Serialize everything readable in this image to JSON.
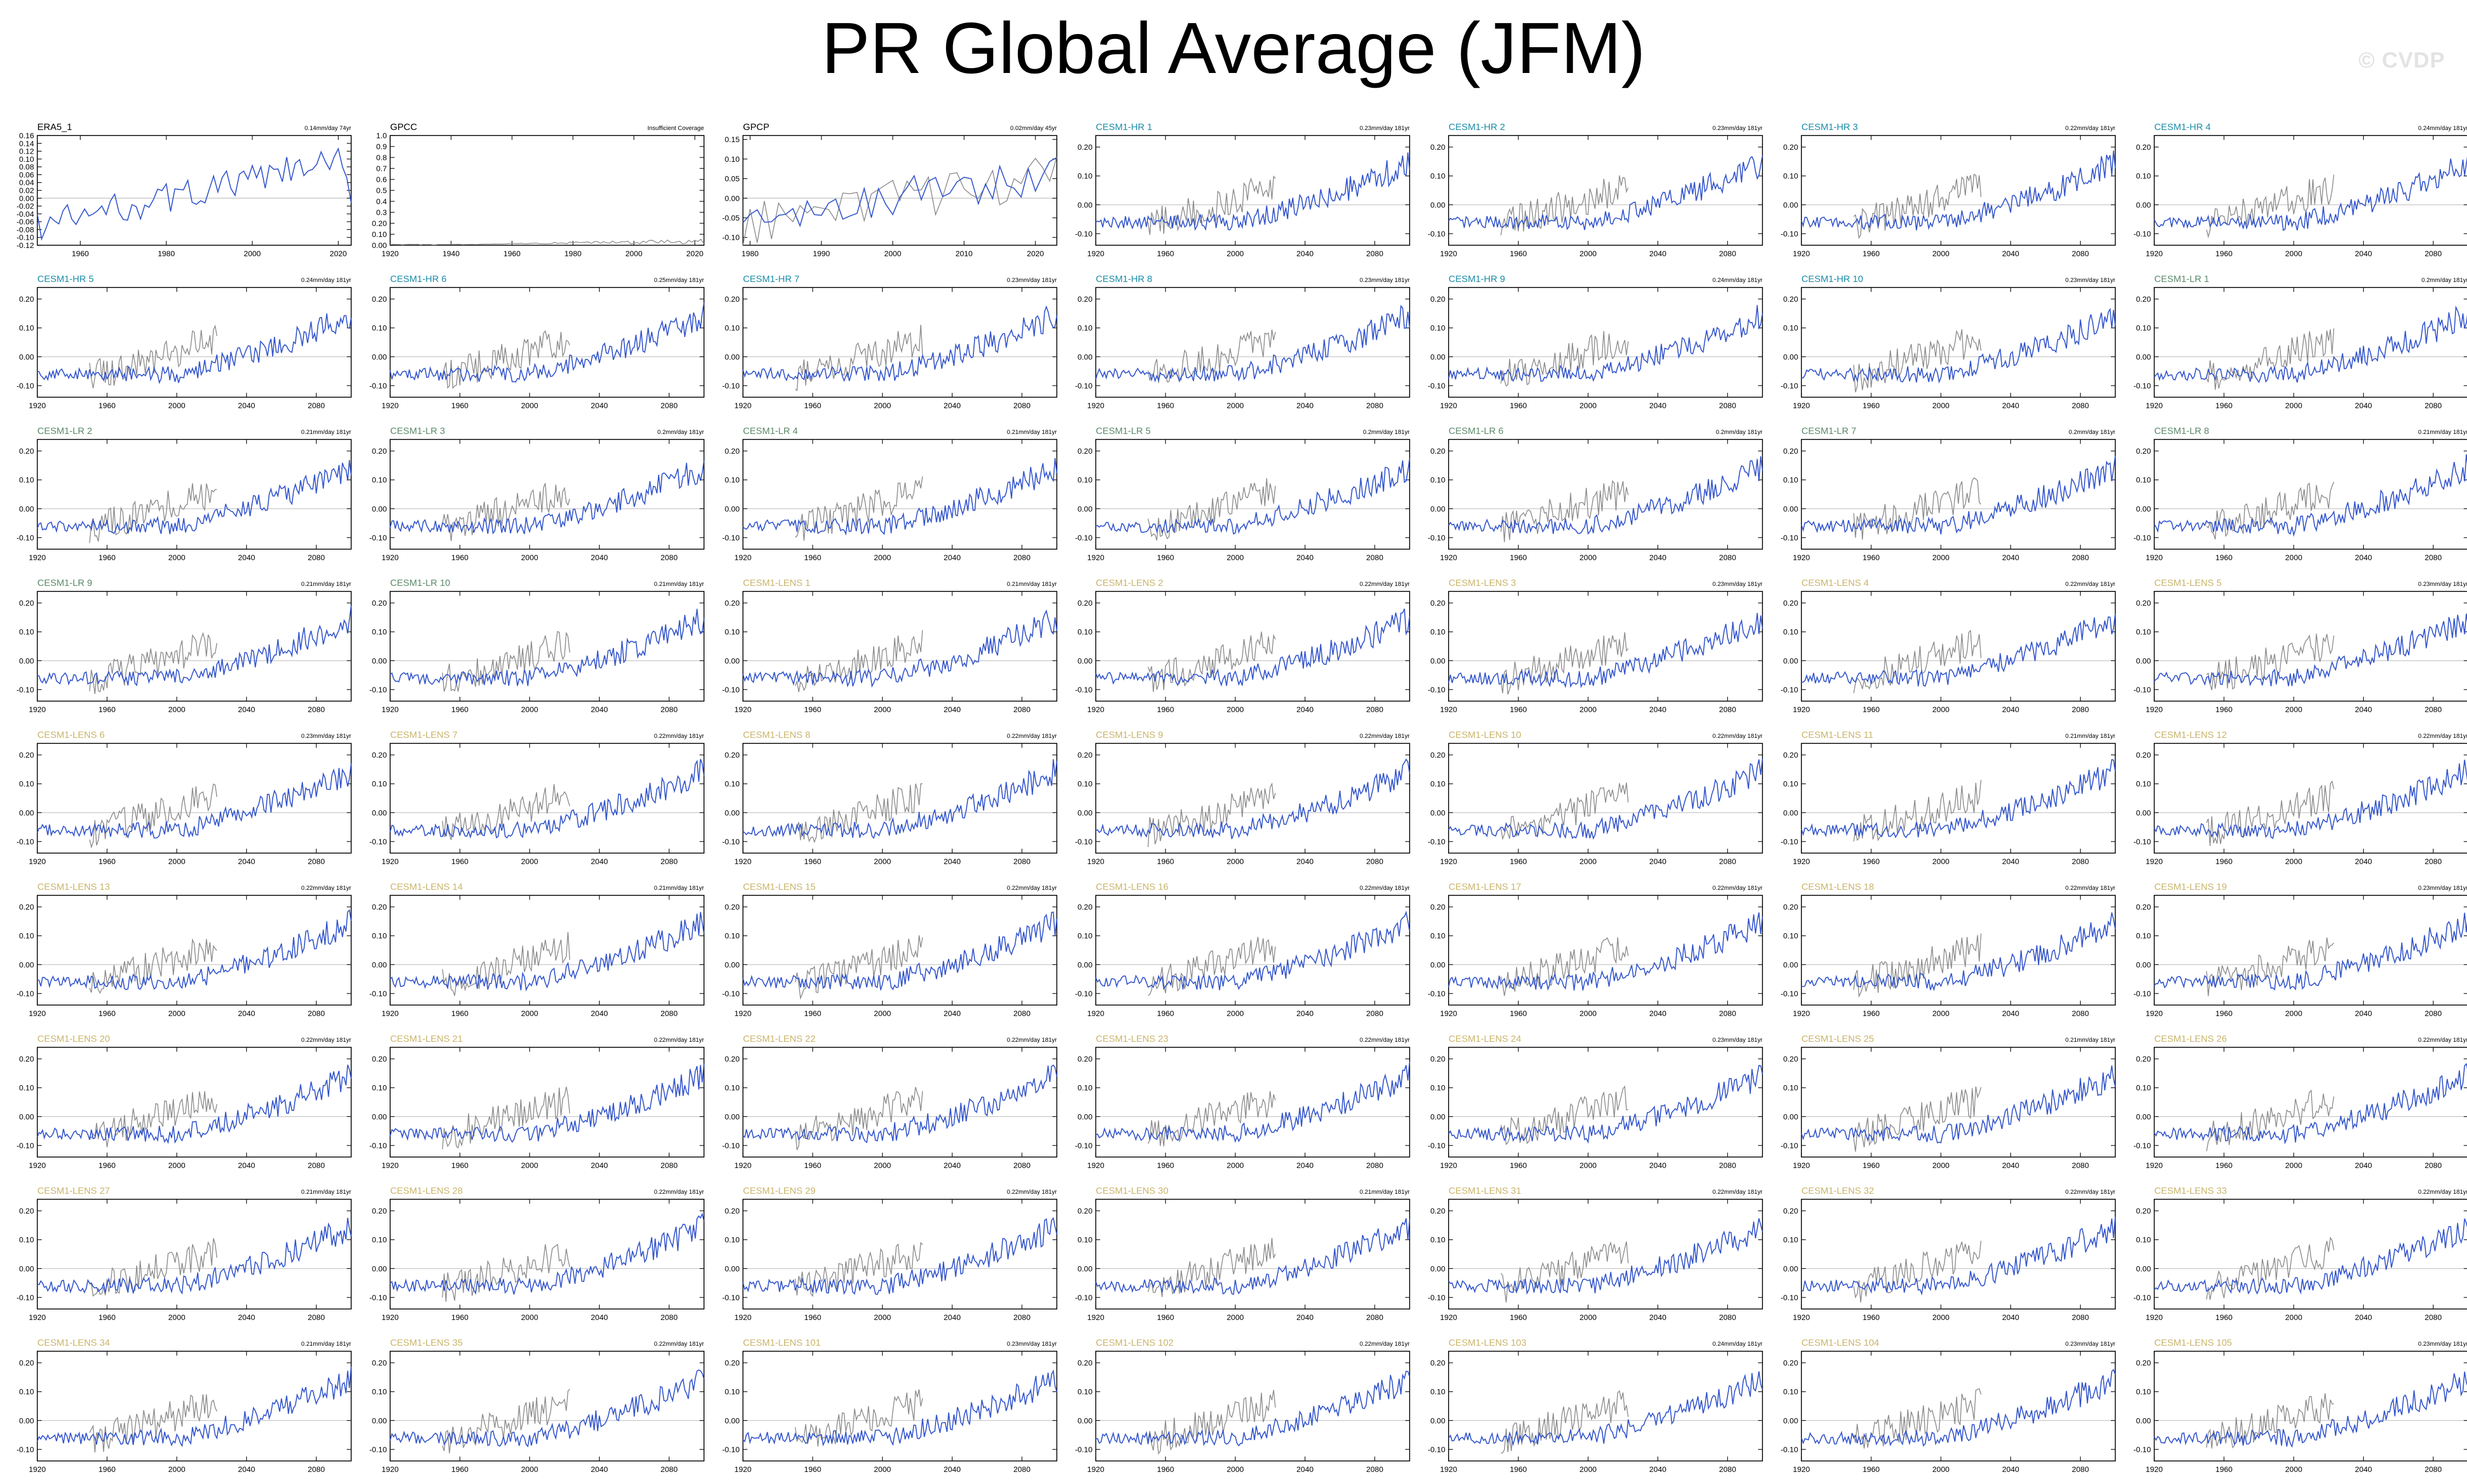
{
  "title": "PR Global Average (JFM)",
  "watermark": "© CVDP",
  "colors": {
    "model_line": "#3355cc",
    "obs_line": "#8a8a8a",
    "zero_line": "#bbbbbb",
    "obs_label": "#000000",
    "hr_label": "#1a8ca8",
    "lr_label": "#5b8a6a",
    "lens_label": "#c9b46a"
  },
  "chart_data": {
    "type": "line",
    "layout": "grid 7 columns x 9 rows of small-multiple panels",
    "panels": [
      {
        "name": "ERA5_1",
        "trend": "0.14mm/day 74yr",
        "group": "obs",
        "x_range": [
          1950,
          2023
        ],
        "ylim": [
          -0.12,
          0.16
        ],
        "yticks": [
          -0.12,
          -0.1,
          -0.08,
          -0.06,
          -0.04,
          -0.02,
          0.0,
          0.02,
          0.04,
          0.06,
          0.08,
          0.1,
          0.12,
          0.14,
          0.16
        ],
        "xticks": [
          1960,
          1980,
          2000,
          2020
        ],
        "series": "model",
        "overlay_obs": false
      },
      {
        "name": "GPCC",
        "trend": "Insufficient Coverage",
        "group": "obs",
        "x_range": [
          1920,
          2023
        ],
        "ylim": [
          0.0,
          1.0
        ],
        "yticks": [
          0.0,
          0.1,
          0.2,
          0.3,
          0.4,
          0.5,
          0.6,
          0.7,
          0.8,
          0.9,
          1.0
        ],
        "xticks": [
          1920,
          1940,
          1960,
          1980,
          2000,
          2020
        ],
        "series": "gpcc",
        "overlay_obs": false
      },
      {
        "name": "GPCP",
        "trend": "0.02mm/day 45yr",
        "group": "obs",
        "x_range": [
          1979,
          2023
        ],
        "ylim": [
          -0.12,
          0.16
        ],
        "yticks": [
          -0.1,
          -0.05,
          0.0,
          0.05,
          0.1,
          0.15
        ],
        "xticks": [
          1980,
          1990,
          2000,
          2010,
          2020
        ],
        "series": "model",
        "overlay_obs": true
      },
      {
        "name": "CESM1-HR 1",
        "trend": "0.23mm/day 181yr",
        "group": "hr"
      },
      {
        "name": "CESM1-HR 2",
        "trend": "0.23mm/day 181yr",
        "group": "hr"
      },
      {
        "name": "CESM1-HR 3",
        "trend": "0.22mm/day 181yr",
        "group": "hr"
      },
      {
        "name": "CESM1-HR 4",
        "trend": "0.24mm/day 181yr",
        "group": "hr"
      },
      {
        "name": "CESM1-HR 5",
        "trend": "0.24mm/day 181yr",
        "group": "hr"
      },
      {
        "name": "CESM1-HR 6",
        "trend": "0.25mm/day 181yr",
        "group": "hr"
      },
      {
        "name": "CESM1-HR 7",
        "trend": "0.23mm/day 181yr",
        "group": "hr"
      },
      {
        "name": "CESM1-HR 8",
        "trend": "0.23mm/day 181yr",
        "group": "hr"
      },
      {
        "name": "CESM1-HR 9",
        "trend": "0.24mm/day 181yr",
        "group": "hr"
      },
      {
        "name": "CESM1-HR 10",
        "trend": "0.23mm/day 181yr",
        "group": "hr"
      },
      {
        "name": "CESM1-LR 1",
        "trend": "0.2mm/day 181yr",
        "group": "lr"
      },
      {
        "name": "CESM1-LR 2",
        "trend": "0.21mm/day 181yr",
        "group": "lr"
      },
      {
        "name": "CESM1-LR 3",
        "trend": "0.2mm/day 181yr",
        "group": "lr"
      },
      {
        "name": "CESM1-LR 4",
        "trend": "0.21mm/day 181yr",
        "group": "lr"
      },
      {
        "name": "CESM1-LR 5",
        "trend": "0.2mm/day 181yr",
        "group": "lr"
      },
      {
        "name": "CESM1-LR 6",
        "trend": "0.2mm/day 181yr",
        "group": "lr"
      },
      {
        "name": "CESM1-LR 7",
        "trend": "0.2mm/day 181yr",
        "group": "lr"
      },
      {
        "name": "CESM1-LR 8",
        "trend": "0.21mm/day 181yr",
        "group": "lr"
      },
      {
        "name": "CESM1-LR 9",
        "trend": "0.21mm/day 181yr",
        "group": "lr"
      },
      {
        "name": "CESM1-LR 10",
        "trend": "0.21mm/day 181yr",
        "group": "lr"
      },
      {
        "name": "CESM1-LENS 1",
        "trend": "0.21mm/day 181yr",
        "group": "lens"
      },
      {
        "name": "CESM1-LENS 2",
        "trend": "0.22mm/day 181yr",
        "group": "lens"
      },
      {
        "name": "CESM1-LENS 3",
        "trend": "0.23mm/day 181yr",
        "group": "lens"
      },
      {
        "name": "CESM1-LENS 4",
        "trend": "0.22mm/day 181yr",
        "group": "lens"
      },
      {
        "name": "CESM1-LENS 5",
        "trend": "0.23mm/day 181yr",
        "group": "lens"
      },
      {
        "name": "CESM1-LENS 6",
        "trend": "0.23mm/day 181yr",
        "group": "lens"
      },
      {
        "name": "CESM1-LENS 7",
        "trend": "0.22mm/day 181yr",
        "group": "lens"
      },
      {
        "name": "CESM1-LENS 8",
        "trend": "0.22mm/day 181yr",
        "group": "lens"
      },
      {
        "name": "CESM1-LENS 9",
        "trend": "0.22mm/day 181yr",
        "group": "lens"
      },
      {
        "name": "CESM1-LENS 10",
        "trend": "0.22mm/day 181yr",
        "group": "lens"
      },
      {
        "name": "CESM1-LENS 11",
        "trend": "0.21mm/day 181yr",
        "group": "lens"
      },
      {
        "name": "CESM1-LENS 12",
        "trend": "0.22mm/day 181yr",
        "group": "lens"
      },
      {
        "name": "CESM1-LENS 13",
        "trend": "0.22mm/day 181yr",
        "group": "lens"
      },
      {
        "name": "CESM1-LENS 14",
        "trend": "0.21mm/day 181yr",
        "group": "lens"
      },
      {
        "name": "CESM1-LENS 15",
        "trend": "0.22mm/day 181yr",
        "group": "lens"
      },
      {
        "name": "CESM1-LENS 16",
        "trend": "0.22mm/day 181yr",
        "group": "lens"
      },
      {
        "name": "CESM1-LENS 17",
        "trend": "0.22mm/day 181yr",
        "group": "lens"
      },
      {
        "name": "CESM1-LENS 18",
        "trend": "0.22mm/day 181yr",
        "group": "lens"
      },
      {
        "name": "CESM1-LENS 19",
        "trend": "0.23mm/day 181yr",
        "group": "lens"
      },
      {
        "name": "CESM1-LENS 20",
        "trend": "0.22mm/day 181yr",
        "group": "lens"
      },
      {
        "name": "CESM1-LENS 21",
        "trend": "0.22mm/day 181yr",
        "group": "lens"
      },
      {
        "name": "CESM1-LENS 22",
        "trend": "0.22mm/day 181yr",
        "group": "lens"
      },
      {
        "name": "CESM1-LENS 23",
        "trend": "0.22mm/day 181yr",
        "group": "lens"
      },
      {
        "name": "CESM1-LENS 24",
        "trend": "0.23mm/day 181yr",
        "group": "lens"
      },
      {
        "name": "CESM1-LENS 25",
        "trend": "0.21mm/day 181yr",
        "group": "lens"
      },
      {
        "name": "CESM1-LENS 26",
        "trend": "0.22mm/day 181yr",
        "group": "lens"
      },
      {
        "name": "CESM1-LENS 27",
        "trend": "0.21mm/day 181yr",
        "group": "lens"
      },
      {
        "name": "CESM1-LENS 28",
        "trend": "0.22mm/day 181yr",
        "group": "lens"
      },
      {
        "name": "CESM1-LENS 29",
        "trend": "0.22mm/day 181yr",
        "group": "lens"
      },
      {
        "name": "CESM1-LENS 30",
        "trend": "0.21mm/day 181yr",
        "group": "lens"
      },
      {
        "name": "CESM1-LENS 31",
        "trend": "0.22mm/day 181yr",
        "group": "lens"
      },
      {
        "name": "CESM1-LENS 32",
        "trend": "0.22mm/day 181yr",
        "group": "lens"
      },
      {
        "name": "CESM1-LENS 33",
        "trend": "0.22mm/day 181yr",
        "group": "lens"
      },
      {
        "name": "CESM1-LENS 34",
        "trend": "0.21mm/day 181yr",
        "group": "lens"
      },
      {
        "name": "CESM1-LENS 35",
        "trend": "0.22mm/day 181yr",
        "group": "lens"
      },
      {
        "name": "CESM1-LENS 101",
        "trend": "0.23mm/day 181yr",
        "group": "lens"
      },
      {
        "name": "CESM1-LENS 102",
        "trend": "0.22mm/day 181yr",
        "group": "lens"
      },
      {
        "name": "CESM1-LENS 103",
        "trend": "0.24mm/day 181yr",
        "group": "lens"
      },
      {
        "name": "CESM1-LENS 104",
        "trend": "0.23mm/day 181yr",
        "group": "lens"
      },
      {
        "name": "CESM1-LENS 105",
        "trend": "0.23mm/day 181yr",
        "group": "lens"
      }
    ],
    "model_defaults": {
      "x_range": [
        1920,
        2100
      ],
      "ylim": [
        -0.14,
        0.24
      ],
      "yticks": [
        -0.1,
        0.0,
        0.1,
        0.2
      ],
      "xticks": [
        1920,
        1960,
        2000,
        2040,
        2080
      ],
      "overlay_obs": true,
      "obs_overlay_range": [
        1950,
        2023
      ]
    },
    "ytick_labels": {
      "-0.12": "-0.12",
      "-0.1": "-0.10",
      "-0.08": "-0.08",
      "-0.06": "-0.06",
      "-0.04": "-0.04",
      "-0.02": "-0.02",
      "0": "0.00",
      "0.02": "0.02",
      "0.04": "0.04",
      "0.06": "0.06",
      "0.08": "0.08",
      "0.1": "0.10",
      "0.12": "0.12",
      "0.14": "0.14",
      "0.16": "0.16",
      "0.2": "0.20",
      "-0.05": "-0.05",
      "0.05": "0.05",
      "0.15": "0.15",
      "0.3": "0.3",
      "0.4": "0.4",
      "0.5": "0.5",
      "0.6": "0.6",
      "0.7": "0.7",
      "0.8": "0.8",
      "0.9": "0.9",
      "1": "1.0"
    }
  }
}
